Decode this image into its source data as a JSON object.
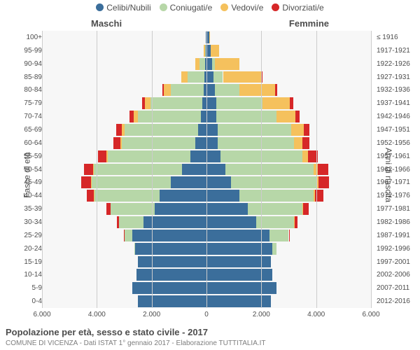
{
  "legend": [
    {
      "label": "Celibi/Nubili",
      "color": "#3b6e9b"
    },
    {
      "label": "Coniugati/e",
      "color": "#b7d7a8"
    },
    {
      "label": "Vedovi/e",
      "color": "#f5c15d"
    },
    {
      "label": "Divorziati/e",
      "color": "#d62728"
    }
  ],
  "side_left": "Maschi",
  "side_right": "Femmine",
  "ylabel_left": "Fasce di età",
  "ylabel_right": "Anni di nascita",
  "title": "Popolazione per età, sesso e stato civile - 2017",
  "subtitle": "COMUNE DI VICENZA - Dati ISTAT 1° gennaio 2017 - Elaborazione TUTTITALIA.IT",
  "xmax": 6000,
  "xticks": [
    -6000,
    -4000,
    -2000,
    0,
    2000,
    4000,
    6000
  ],
  "xtick_labels": [
    "6.000",
    "4.000",
    "2.000",
    "0",
    "2.000",
    "4.000",
    "6.000"
  ],
  "age_labels": [
    "100+",
    "95-99",
    "90-94",
    "85-89",
    "80-84",
    "75-79",
    "70-74",
    "65-69",
    "60-64",
    "55-59",
    "50-54",
    "45-49",
    "40-44",
    "35-39",
    "30-34",
    "25-29",
    "20-24",
    "15-19",
    "10-14",
    "5-9",
    "0-4"
  ],
  "birth_labels": [
    "≤ 1916",
    "1917-1921",
    "1922-1926",
    "1927-1931",
    "1932-1936",
    "1937-1941",
    "1942-1946",
    "1947-1951",
    "1952-1956",
    "1957-1961",
    "1962-1966",
    "1967-1971",
    "1972-1976",
    "1977-1981",
    "1982-1986",
    "1987-1991",
    "1992-1996",
    "1997-2001",
    "2002-2006",
    "2007-2011",
    "2012-2016"
  ],
  "rows": [
    {
      "m": {
        "c": 20,
        "co": 0,
        "v": 0,
        "d": 0
      },
      "f": {
        "c": 100,
        "co": 0,
        "v": 30,
        "d": 0
      }
    },
    {
      "m": {
        "c": 30,
        "co": 30,
        "v": 30,
        "d": 0
      },
      "f": {
        "c": 150,
        "co": 0,
        "v": 300,
        "d": 0
      }
    },
    {
      "m": {
        "c": 50,
        "co": 200,
        "v": 150,
        "d": 0
      },
      "f": {
        "c": 200,
        "co": 100,
        "v": 900,
        "d": 0
      }
    },
    {
      "m": {
        "c": 80,
        "co": 600,
        "v": 250,
        "d": 0
      },
      "f": {
        "c": 250,
        "co": 350,
        "v": 1400,
        "d": 50
      }
    },
    {
      "m": {
        "c": 100,
        "co": 1200,
        "v": 250,
        "d": 50
      },
      "f": {
        "c": 300,
        "co": 900,
        "v": 1300,
        "d": 80
      }
    },
    {
      "m": {
        "c": 150,
        "co": 1900,
        "v": 200,
        "d": 100
      },
      "f": {
        "c": 350,
        "co": 1700,
        "v": 1000,
        "d": 120
      }
    },
    {
      "m": {
        "c": 200,
        "co": 2300,
        "v": 150,
        "d": 150
      },
      "f": {
        "c": 350,
        "co": 2200,
        "v": 700,
        "d": 150
      }
    },
    {
      "m": {
        "c": 300,
        "co": 2700,
        "v": 100,
        "d": 200
      },
      "f": {
        "c": 400,
        "co": 2700,
        "v": 450,
        "d": 200
      }
    },
    {
      "m": {
        "c": 400,
        "co": 2700,
        "v": 50,
        "d": 250
      },
      "f": {
        "c": 400,
        "co": 2800,
        "v": 300,
        "d": 250
      }
    },
    {
      "m": {
        "c": 600,
        "co": 3000,
        "v": 50,
        "d": 300
      },
      "f": {
        "c": 500,
        "co": 3000,
        "v": 200,
        "d": 350
      }
    },
    {
      "m": {
        "c": 900,
        "co": 3200,
        "v": 30,
        "d": 350
      },
      "f": {
        "c": 700,
        "co": 3200,
        "v": 150,
        "d": 400
      }
    },
    {
      "m": {
        "c": 1300,
        "co": 2900,
        "v": 20,
        "d": 350
      },
      "f": {
        "c": 900,
        "co": 3100,
        "v": 80,
        "d": 400
      }
    },
    {
      "m": {
        "c": 1700,
        "co": 2400,
        "v": 20,
        "d": 250
      },
      "f": {
        "c": 1200,
        "co": 2700,
        "v": 60,
        "d": 300
      }
    },
    {
      "m": {
        "c": 1900,
        "co": 1600,
        "v": 0,
        "d": 150
      },
      "f": {
        "c": 1500,
        "co": 2000,
        "v": 30,
        "d": 200
      }
    },
    {
      "m": {
        "c": 2300,
        "co": 900,
        "v": 0,
        "d": 80
      },
      "f": {
        "c": 1800,
        "co": 1400,
        "v": 10,
        "d": 120
      }
    },
    {
      "m": {
        "c": 2700,
        "co": 300,
        "v": 0,
        "d": 20
      },
      "f": {
        "c": 2300,
        "co": 700,
        "v": 0,
        "d": 50
      }
    },
    {
      "m": {
        "c": 2600,
        "co": 30,
        "v": 0,
        "d": 0
      },
      "f": {
        "c": 2400,
        "co": 150,
        "v": 0,
        "d": 0
      }
    },
    {
      "m": {
        "c": 2500,
        "co": 0,
        "v": 0,
        "d": 0
      },
      "f": {
        "c": 2350,
        "co": 0,
        "v": 0,
        "d": 0
      }
    },
    {
      "m": {
        "c": 2550,
        "co": 0,
        "v": 0,
        "d": 0
      },
      "f": {
        "c": 2400,
        "co": 0,
        "v": 0,
        "d": 0
      }
    },
    {
      "m": {
        "c": 2700,
        "co": 0,
        "v": 0,
        "d": 0
      },
      "f": {
        "c": 2550,
        "co": 0,
        "v": 0,
        "d": 0
      }
    },
    {
      "m": {
        "c": 2500,
        "co": 0,
        "v": 0,
        "d": 0
      },
      "f": {
        "c": 2350,
        "co": 0,
        "v": 0,
        "d": 0
      }
    }
  ],
  "colors": {
    "c": "#3b6e9b",
    "co": "#b7d7a8",
    "v": "#f5c15d",
    "d": "#d62728",
    "bg": "#f7f7f7",
    "grid": "#cccccc"
  }
}
